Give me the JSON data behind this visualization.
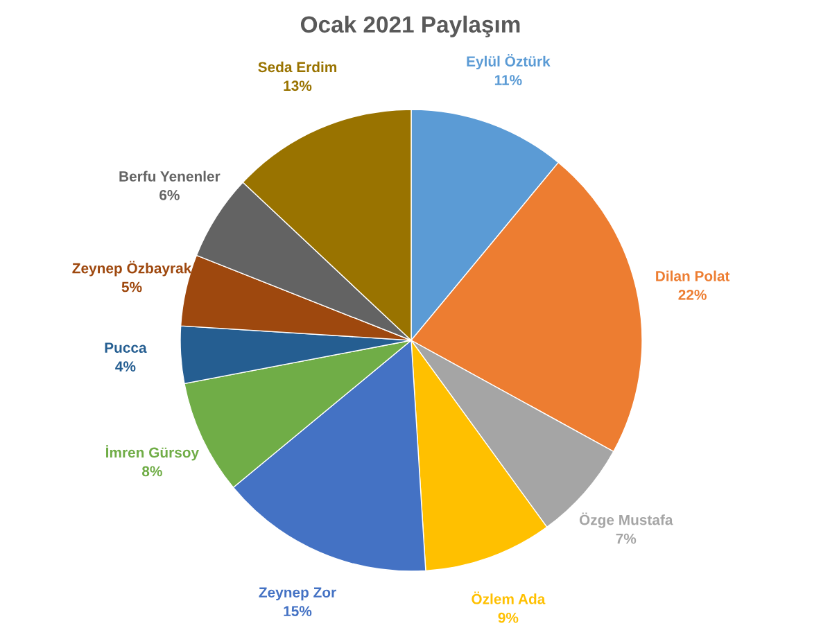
{
  "chart_data": {
    "type": "pie",
    "title": "Ocak 2021 Paylaşım",
    "categories": [
      "Eylül Öztürk",
      "Dilan Polat",
      "Özge Mustafa",
      "Özlem Ada",
      "Zeynep Zor",
      "İmren Gürsoy",
      "Pucca",
      "Zeynep Özbayrak",
      "Berfu Yenenler",
      "Seda Erdim"
    ],
    "values": [
      11,
      22,
      7,
      9,
      15,
      8,
      4,
      5,
      6,
      13
    ],
    "value_labels": [
      "11%",
      "22%",
      "7%",
      "9%",
      "15%",
      "8%",
      "4%",
      "5%",
      "6%",
      "13%"
    ],
    "colors": [
      "#5b9bd5",
      "#ed7d31",
      "#a5a5a5",
      "#ffc000",
      "#4472c4",
      "#70ad47",
      "#255e91",
      "#9e480e",
      "#636363",
      "#997300"
    ],
    "legend": false
  }
}
